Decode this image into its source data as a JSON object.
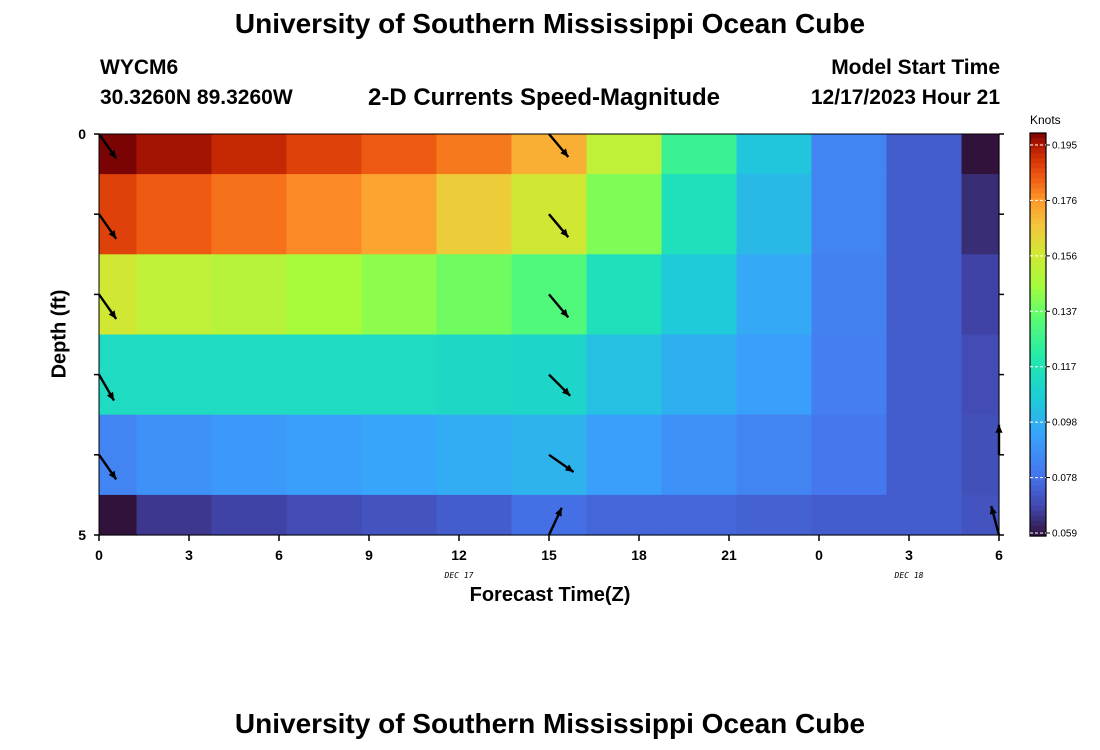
{
  "header": {
    "title": "University of Southern Mississippi Ocean Cube",
    "station": "WYCM6",
    "coords": "30.3260N  89.3260W",
    "subtitle": "2-D Currents Speed-Magnitude",
    "model_label": "Model Start Time",
    "model_time": "12/17/2023 Hour 21"
  },
  "footer": {
    "title": "University of Southern Mississippi Ocean Cube"
  },
  "colorbar": {
    "title": "Knots",
    "labels": [
      "0.195",
      "0.176",
      "0.156",
      "0.137",
      "0.117",
      "0.098",
      "0.078",
      "0.059"
    ],
    "min": 0.059,
    "max": 0.195
  },
  "chart_data": {
    "type": "heatmap",
    "title": "2-D Currents Speed-Magnitude",
    "xlabel": "Forecast Time(Z)",
    "ylabel": "Depth (ft)",
    "units": "Knots",
    "x_hours": [
      0,
      2.5,
      5,
      7.5,
      10,
      12.5,
      15,
      17.5,
      20,
      22.5,
      25,
      27.5,
      30
    ],
    "x_ticks": [
      {
        "hour": 0,
        "label": "0"
      },
      {
        "hour": 3,
        "label": "3"
      },
      {
        "hour": 6,
        "label": "6"
      },
      {
        "hour": 9,
        "label": "9"
      },
      {
        "hour": 12,
        "label": "12"
      },
      {
        "hour": 15,
        "label": "15"
      },
      {
        "hour": 18,
        "label": "18"
      },
      {
        "hour": 21,
        "label": "21"
      },
      {
        "hour": 24,
        "label": "0"
      },
      {
        "hour": 27,
        "label": "3"
      },
      {
        "hour": 30,
        "label": "6"
      }
    ],
    "date_labels": [
      {
        "hour": 12,
        "label": "DEC 17"
      },
      {
        "hour": 27,
        "label": "DEC 18"
      }
    ],
    "y_ticks": [
      {
        "depth": 0,
        "label": "0"
      },
      {
        "depth": 5,
        "label": "5"
      }
    ],
    "depths": [
      0,
      1,
      2,
      3,
      4,
      5
    ],
    "ylim": [
      0,
      5
    ],
    "xlim": [
      0,
      30
    ],
    "clim": [
      0.059,
      0.195
    ],
    "values": [
      [
        0.195,
        0.192,
        0.188,
        0.184,
        0.18,
        0.176,
        0.168,
        0.15,
        0.125,
        0.104,
        0.084,
        0.074,
        0.059
      ],
      [
        0.184,
        0.18,
        0.177,
        0.174,
        0.17,
        0.162,
        0.154,
        0.138,
        0.114,
        0.1,
        0.084,
        0.074,
        0.064
      ],
      [
        0.154,
        0.15,
        0.148,
        0.144,
        0.14,
        0.136,
        0.13,
        0.114,
        0.105,
        0.095,
        0.083,
        0.074,
        0.068
      ],
      [
        0.112,
        0.112,
        0.112,
        0.112,
        0.112,
        0.111,
        0.11,
        0.102,
        0.097,
        0.092,
        0.082,
        0.074,
        0.07
      ],
      [
        0.084,
        0.088,
        0.09,
        0.092,
        0.094,
        0.096,
        0.098,
        0.092,
        0.088,
        0.084,
        0.08,
        0.074,
        0.071
      ],
      [
        0.059,
        0.066,
        0.068,
        0.07,
        0.072,
        0.074,
        0.078,
        0.076,
        0.076,
        0.075,
        0.074,
        0.074,
        0.072
      ]
    ],
    "vectors": [
      {
        "hour": 0,
        "depth": 0,
        "dir_deg": 145
      },
      {
        "hour": 0,
        "depth": 1,
        "dir_deg": 145
      },
      {
        "hour": 0,
        "depth": 2,
        "dir_deg": 145
      },
      {
        "hour": 0,
        "depth": 3,
        "dir_deg": 150
      },
      {
        "hour": 0,
        "depth": 4,
        "dir_deg": 145
      },
      {
        "hour": 15,
        "depth": 0,
        "dir_deg": 140
      },
      {
        "hour": 15,
        "depth": 1,
        "dir_deg": 140
      },
      {
        "hour": 15,
        "depth": 2,
        "dir_deg": 140
      },
      {
        "hour": 15,
        "depth": 3,
        "dir_deg": 135
      },
      {
        "hour": 15,
        "depth": 4,
        "dir_deg": 125
      },
      {
        "hour": 15,
        "depth": 5,
        "dir_deg": 25
      },
      {
        "hour": 30,
        "depth": 4,
        "dir_deg": 0
      },
      {
        "hour": 30,
        "depth": 5,
        "dir_deg": 345
      }
    ]
  }
}
